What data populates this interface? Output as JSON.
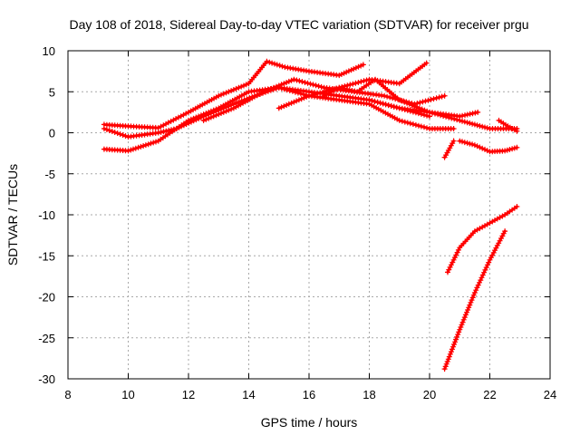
{
  "chart_data": {
    "type": "line",
    "title": "Day 108 of 2018, Sidereal Day-to-day VTEC variation (SDTVAR) for receiver prgu",
    "xlabel": "GPS time / hours",
    "ylabel": "SDTVAR / TECUs",
    "xlim": [
      8,
      24
    ],
    "ylim": [
      -30,
      10
    ],
    "xticks": [
      "8",
      "10",
      "12",
      "14",
      "16",
      "18",
      "20",
      "22",
      "24"
    ],
    "yticks": [
      "10",
      "5",
      "0",
      "-5",
      "-10",
      "-15",
      "-20",
      "-25",
      "-30"
    ],
    "xtick_values": [
      8,
      10,
      12,
      14,
      16,
      18,
      20,
      22,
      24
    ],
    "ytick_values": [
      10,
      5,
      0,
      -5,
      -10,
      -15,
      -20,
      -25,
      -30
    ],
    "grid": true,
    "line_color": "#ff0000",
    "marker": "plus",
    "series": [
      {
        "x": [
          9.2,
          10.0,
          11.0,
          12.0,
          13.0,
          14.0,
          14.6,
          15.2,
          16.0,
          17.0,
          17.8
        ],
        "y": [
          1.0,
          0.8,
          0.6,
          2.5,
          4.5,
          6.0,
          8.7,
          8.0,
          7.5,
          7.0,
          8.3
        ]
      },
      {
        "x": [
          9.2,
          10.0,
          11.0,
          12.0,
          13.0,
          14.0,
          15.0,
          16.0,
          17.0,
          18.0,
          19.0,
          20.0
        ],
        "y": [
          -2.0,
          -2.2,
          -1.0,
          1.5,
          3.0,
          5.0,
          5.5,
          5.0,
          4.5,
          4.0,
          3.0,
          2.0
        ]
      },
      {
        "x": [
          9.2,
          10.0,
          11.0,
          11.6,
          12.5,
          13.5,
          14.2,
          15.0,
          16.0,
          17.0,
          18.0,
          19.0,
          20.0,
          20.8
        ],
        "y": [
          0.5,
          -0.5,
          0.0,
          0.5,
          2.0,
          3.5,
          4.5,
          5.5,
          4.5,
          4.0,
          3.5,
          1.5,
          0.5,
          0.5
        ]
      },
      {
        "x": [
          12.5,
          13.5,
          14.5,
          15.5,
          16.5,
          17.5,
          18.5,
          19.5,
          20.5
        ],
        "y": [
          1.5,
          3.0,
          5.0,
          6.5,
          5.5,
          5.0,
          4.5,
          3.5,
          4.5
        ]
      },
      {
        "x": [
          15.0,
          16.0,
          17.0,
          18.0,
          19.0,
          19.9
        ],
        "y": [
          3.0,
          4.5,
          5.5,
          6.5,
          6.0,
          8.5
        ]
      },
      {
        "x": [
          16.5,
          17.0,
          17.6,
          18.2,
          19.0,
          20.0,
          21.0,
          21.5,
          22.0,
          22.9
        ],
        "y": [
          4.5,
          5.5,
          5.0,
          6.5,
          4.0,
          2.5,
          1.5,
          1.0,
          0.5,
          0.5
        ]
      },
      {
        "x": [
          18.0,
          19.0,
          20.0,
          21.0,
          21.6
        ],
        "y": [
          4.0,
          3.0,
          2.5,
          2.0,
          2.5
        ]
      },
      {
        "x": [
          20.5,
          20.8
        ],
        "y": [
          -3.0,
          -1.0
        ]
      },
      {
        "x": [
          21.0,
          21.5,
          22.0,
          22.5,
          22.9
        ],
        "y": [
          -1.0,
          -1.5,
          -2.3,
          -2.2,
          -1.8
        ]
      },
      {
        "x": [
          22.3,
          22.6,
          22.9
        ],
        "y": [
          1.5,
          0.8,
          0.2
        ]
      },
      {
        "x": [
          20.6,
          21.0,
          21.5,
          22.0,
          22.5,
          22.9
        ],
        "y": [
          -17.0,
          -14.0,
          -12.0,
          -11.0,
          -10.0,
          -9.0
        ]
      },
      {
        "x": [
          20.5,
          21.0,
          21.5,
          22.0,
          22.5
        ],
        "y": [
          -28.8,
          -24.0,
          -19.5,
          -15.5,
          -12.0
        ]
      }
    ]
  }
}
